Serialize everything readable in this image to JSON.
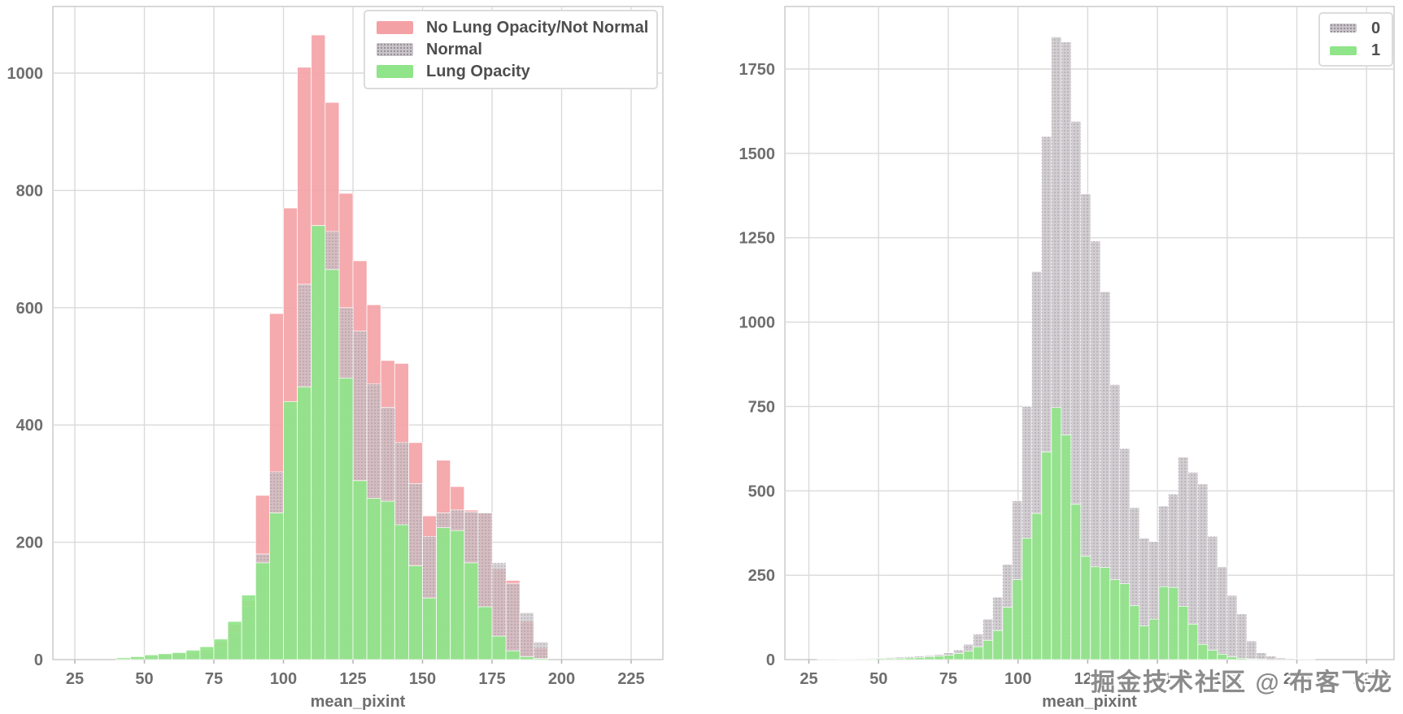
{
  "watermark": "掘金技术社区 @ 布客飞龙",
  "colors": {
    "background": "#ffffff",
    "gridline": "#dadada",
    "plot_border": "#cccccc",
    "tick_label": "#6e6e6e",
    "legend_text": "#4e4e4e",
    "pink": "#f4a1a5",
    "gray": "#c9c4c9",
    "green": "#90e489"
  },
  "chart_data": [
    {
      "type": "bar",
      "subtype": "overlaid-histogram",
      "title": "",
      "xlabel": "mean_pixint",
      "ylabel": "",
      "grid": true,
      "legend_position": "upper right",
      "x_ticks": [
        25,
        50,
        75,
        100,
        125,
        150,
        175,
        200,
        225
      ],
      "y_ticks": [
        0,
        200,
        400,
        600,
        800,
        1000
      ],
      "xlim": [
        17,
        233
      ],
      "ylim": [
        0,
        1113
      ],
      "bin_start": 30,
      "bin_width": 5,
      "series": [
        {
          "name": "No Lung Opacity/Not Normal",
          "color": "#f4a1a5",
          "hatch": "none",
          "opacity": 0.9,
          "values": [
            0,
            0,
            2,
            3,
            5,
            8,
            10,
            12,
            16,
            30,
            60,
            100,
            280,
            590,
            770,
            1010,
            1065,
            950,
            795,
            680,
            605,
            510,
            505,
            370,
            245,
            340,
            295,
            255,
            250,
            155,
            135,
            65,
            20
          ]
        },
        {
          "name": "Normal",
          "color": "#c9c4c9",
          "hatch": "dots",
          "opacity": 0.72,
          "values": [
            0,
            0,
            1,
            2,
            3,
            5,
            7,
            9,
            12,
            20,
            45,
            90,
            180,
            320,
            430,
            640,
            740,
            730,
            600,
            560,
            470,
            430,
            370,
            300,
            210,
            250,
            255,
            252,
            250,
            165,
            130,
            80,
            30
          ]
        },
        {
          "name": "Lung Opacity",
          "color": "#90e489",
          "hatch": "none",
          "opacity": 0.92,
          "values": [
            0,
            0,
            3,
            5,
            8,
            10,
            12,
            16,
            22,
            35,
            65,
            110,
            165,
            250,
            440,
            465,
            740,
            665,
            480,
            305,
            275,
            270,
            230,
            160,
            105,
            225,
            220,
            165,
            90,
            40,
            15,
            5,
            2
          ]
        }
      ]
    },
    {
      "type": "bar",
      "subtype": "overlaid-histogram",
      "title": "",
      "xlabel": "mean_pixint",
      "ylabel": "",
      "grid": true,
      "legend_position": "upper right",
      "x_ticks": [
        25,
        50,
        75,
        100,
        125,
        150,
        175,
        200,
        225
      ],
      "y_ticks": [
        0,
        250,
        500,
        750,
        1000,
        1250,
        1500,
        1750
      ],
      "xlim": [
        17,
        234
      ],
      "ylim": [
        0,
        1935
      ],
      "bin_start": 28,
      "bin_width": 3.5,
      "series": [
        {
          "name": "0",
          "color": "#c9c4c9",
          "hatch": "dots",
          "opacity": 0.85,
          "values": [
            1,
            1,
            2,
            2,
            3,
            4,
            5,
            6,
            7,
            8,
            10,
            12,
            15,
            20,
            28,
            45,
            75,
            120,
            185,
            282,
            470,
            750,
            1150,
            1550,
            1845,
            1830,
            1595,
            1380,
            1240,
            1090,
            815,
            625,
            450,
            360,
            350,
            455,
            490,
            600,
            555,
            520,
            365,
            275,
            190,
            135,
            55,
            20,
            10,
            5,
            3,
            2,
            1
          ]
        },
        {
          "name": "1",
          "color": "#90e489",
          "hatch": "none",
          "opacity": 0.92,
          "values": [
            0,
            0,
            1,
            1,
            2,
            2,
            3,
            3,
            4,
            5,
            6,
            8,
            10,
            13,
            18,
            25,
            38,
            57,
            86,
            155,
            237,
            360,
            433,
            615,
            747,
            666,
            460,
            306,
            275,
            273,
            237,
            225,
            160,
            100,
            120,
            216,
            214,
            158,
            105,
            45,
            28,
            16,
            8,
            4,
            2,
            1,
            0,
            0,
            0,
            0,
            0
          ]
        }
      ]
    }
  ]
}
